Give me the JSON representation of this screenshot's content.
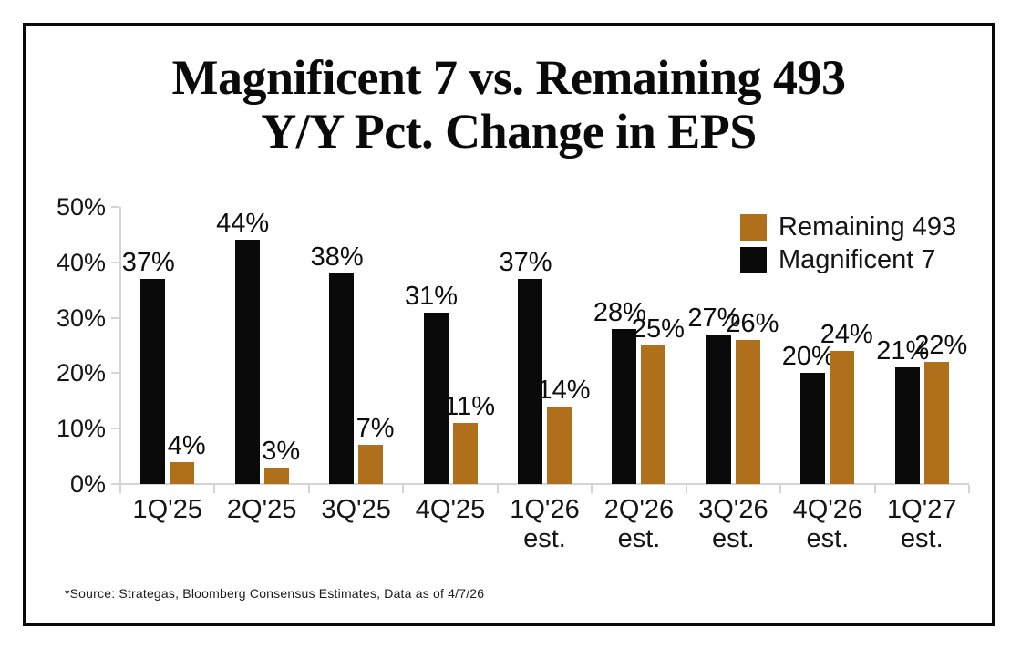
{
  "title": {
    "line1": "Magnificent 7 vs. Remaining 493",
    "line2": "Y/Y Pct. Change in EPS"
  },
  "footnote": "*Source: Strategas, Bloomberg Consensus Estimates, Data as of 4/7/26",
  "chart_data": {
    "type": "bar",
    "title": "Magnificent 7 vs. Remaining 493 Y/Y Pct. Change in EPS",
    "categories": [
      "1Q'25",
      "2Q'25",
      "3Q'25",
      "4Q'25",
      "1Q'26\nest.",
      "2Q'26\nest.",
      "3Q'26\nest.",
      "4Q'26\nest.",
      "1Q'27\nest."
    ],
    "series": [
      {
        "name": "Magnificent 7",
        "color": "#0a0a0a",
        "values": [
          37,
          44,
          38,
          31,
          37,
          28,
          27,
          20,
          21
        ]
      },
      {
        "name": "Remaining 493",
        "color": "#B0701B",
        "values": [
          4,
          3,
          7,
          11,
          14,
          25,
          26,
          24,
          22
        ]
      }
    ],
    "value_label_suffix": "%",
    "xlabel": "",
    "ylabel": "",
    "ylim": [
      0,
      50
    ],
    "yticks": [
      "0%",
      "10%",
      "20%",
      "30%",
      "40%",
      "50%"
    ],
    "grid": false,
    "legend_position": "top-right",
    "legend_order_top_to_bottom": [
      "Remaining 493",
      "Magnificent 7"
    ],
    "axis_color": "#d4d4d4"
  }
}
